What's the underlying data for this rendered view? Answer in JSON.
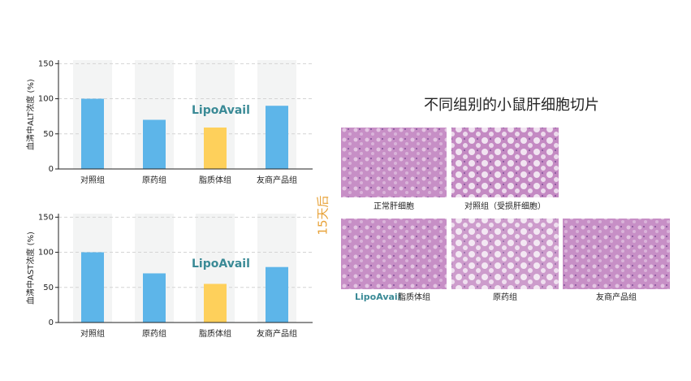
{
  "chart_data": [
    {
      "type": "bar",
      "y_label": "血清中ALT浓度 (%)",
      "categories": [
        "对照组",
        "原药组",
        "脂质体组",
        "友商产品组"
      ],
      "values": [
        100,
        70,
        59,
        90
      ],
      "colors": [
        "#5db5e9",
        "#5db5e9",
        "#fed05b",
        "#5db5e9"
      ],
      "ylim": [
        0,
        155
      ],
      "yticks": [
        0,
        50,
        100,
        150
      ],
      "grid": true
    },
    {
      "type": "bar",
      "y_label": "血清中AST浓度 (%)",
      "categories": [
        "对照组",
        "原药组",
        "脂质体组",
        "友商产品组"
      ],
      "values": [
        100,
        70,
        55,
        79
      ],
      "colors": [
        "#5db5e9",
        "#5db5e9",
        "#fed05b",
        "#5db5e9"
      ],
      "ylim": [
        0,
        155
      ],
      "yticks": [
        0,
        50,
        100,
        150
      ],
      "grid": true
    }
  ],
  "logo": "LipoAvail",
  "histology": {
    "title": "不同组别的小鼠肝细胞切片",
    "time_label": "15天后",
    "labels": [
      "正常肝细胞",
      "对照组（受损肝细胞）",
      "脂质体组",
      "原药组",
      "友商产品组"
    ]
  }
}
